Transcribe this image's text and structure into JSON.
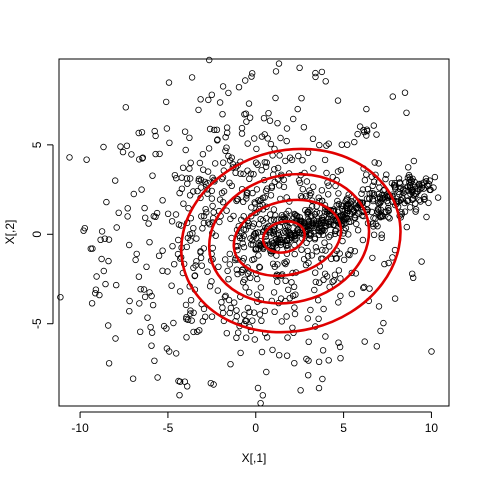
{
  "chart_data": {
    "type": "scatter",
    "xlabel": "X[,1]",
    "ylabel": "X[,2]",
    "xlim": [
      -11.2,
      11.0
    ],
    "ylim": [
      -9.6,
      9.8
    ],
    "xticks": [
      -10,
      -5,
      0,
      5,
      10
    ],
    "yticks": [
      -5,
      0,
      5
    ],
    "grid": false,
    "point_color": "#000000",
    "contour_color": "#e00000",
    "points_sample": [
      [
        -10.6,
        4.3
      ],
      [
        -9.8,
        0.2
      ],
      [
        -9.3,
        -0.8
      ],
      [
        -9.1,
        -3.1
      ],
      [
        -8.9,
        -3.4
      ],
      [
        -8.5,
        1.8
      ],
      [
        -8.4,
        -5.1
      ],
      [
        -8.0,
        3.0
      ],
      [
        -7.8,
        1.2
      ],
      [
        -7.7,
        4.9
      ],
      [
        -7.4,
        7.1
      ],
      [
        -7.2,
        -4.3
      ],
      [
        -6.5,
        2.5
      ],
      [
        -6.3,
        -3.5
      ],
      [
        -6.1,
        0.6
      ],
      [
        -5.9,
        -5.5
      ],
      [
        -5.7,
        5.5
      ],
      [
        -5.5,
        -1.2
      ],
      [
        -5.3,
        1.9
      ],
      [
        -5.1,
        7.4
      ],
      [
        -4.4,
        -8.2
      ],
      [
        -3.9,
        -8.5
      ],
      [
        -2.5,
        7.8
      ],
      [
        -2.4,
        -8.4
      ],
      [
        -0.6,
        8.6
      ],
      [
        -0.2,
        9.0
      ],
      [
        0.4,
        -9.0
      ],
      [
        0.6,
        -7.7
      ],
      [
        3.4,
        8.8
      ],
      [
        3.6,
        -8.6
      ],
      [
        4.8,
        -6.3
      ],
      [
        5.8,
        5.6
      ],
      [
        6.3,
        7.0
      ],
      [
        7.1,
        -5.4
      ],
      [
        7.8,
        7.7
      ],
      [
        8.2,
        2.9
      ],
      [
        8.6,
        0.4
      ],
      [
        9.0,
        4.1
      ],
      [
        9.6,
        2.1
      ],
      [
        9.9,
        3.0
      ],
      [
        10.2,
        3.2
      ],
      [
        0.5,
        0.2
      ],
      [
        1.2,
        -0.4
      ],
      [
        2.6,
        0.6
      ],
      [
        4.1,
        1.3
      ],
      [
        5.2,
        2.0
      ],
      [
        6.1,
        2.5
      ],
      [
        7.0,
        2.9
      ],
      [
        3.0,
        -1.6
      ],
      [
        -1.8,
        2.4
      ],
      [
        -2.6,
        -2.9
      ],
      [
        1.9,
        3.4
      ],
      [
        -3.7,
        0.9
      ],
      [
        2.2,
        -4.1
      ],
      [
        -1.0,
        -5.5
      ]
    ],
    "contours": [
      {
        "cx": 1.6,
        "cy": -0.15,
        "rx": 1.2,
        "ry": 0.85,
        "angle_deg": 14
      },
      {
        "cx": 1.8,
        "cy": -0.2,
        "rx": 3.1,
        "ry": 2.05,
        "angle_deg": 14
      },
      {
        "cx": 1.9,
        "cy": -0.25,
        "rx": 4.6,
        "ry": 3.55,
        "angle_deg": 14
      },
      {
        "cx": 2.0,
        "cy": -0.35,
        "rx": 6.3,
        "ry": 5.05,
        "angle_deg": 14
      }
    ]
  }
}
